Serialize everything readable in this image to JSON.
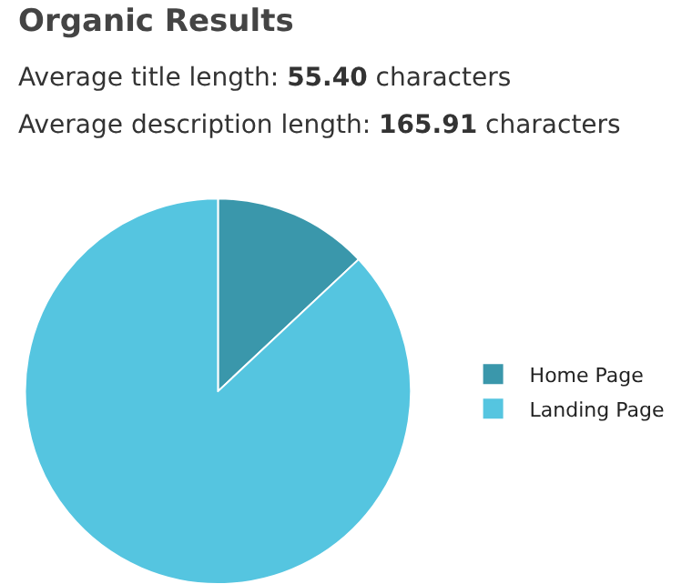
{
  "chart_data": {
    "type": "pie",
    "title": "Organic Results",
    "annotations": [
      "Average title length: 55.40 characters",
      "Average description length: 165.91 characters"
    ],
    "categories": [
      "Home Page",
      "Landing Page"
    ],
    "values": [
      13,
      87
    ],
    "colors": [
      "#3a97ab",
      "#55c5e0"
    ],
    "legend": "right"
  }
}
